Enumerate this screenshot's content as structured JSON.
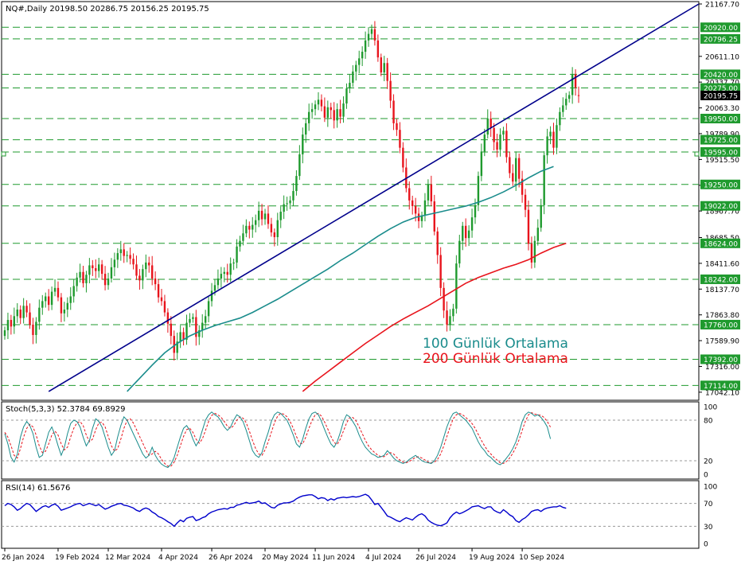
{
  "header": {
    "symbol_line": "NQ#,Daily  20198.50 20286.75 20156.25 20195.75"
  },
  "colors": {
    "background": "#ffffff",
    "bull_candle": "#1f9a2e",
    "bear_candle": "#e8141c",
    "ma100": "#1a8c8c",
    "ma200": "#e8141c",
    "trendline": "#00008b",
    "hline": "#1f9a2e",
    "axis_text": "#000000",
    "stoch_main": "#1a8c8c",
    "stoch_signal": "#e8141c",
    "rsi_line": "#0000cc",
    "current_price_bg": "#000000"
  },
  "chart_data": [
    {
      "type": "candlestick",
      "panel": "main",
      "title": "NQ#,Daily",
      "ohlc_last": {
        "open": 20198.5,
        "high": 20286.75,
        "low": 20156.25,
        "close": 20195.75
      },
      "ylim": [
        16990,
        21167.7
      ],
      "y_ticks": [
        "21167.70",
        "20611.10",
        "20337.70",
        "20063.30",
        "19789.90",
        "19515.50",
        "19241.10",
        "18967.70",
        "18685.50",
        "18411.60",
        "18137.70",
        "17863.80",
        "17589.90",
        "17316.00",
        "17042.10"
      ],
      "x_ticks": [
        "26 Jan 2024",
        "19 Feb 2024",
        "12 Mar 2024",
        "4 Apr 2024",
        "26 Apr 2024",
        "20 May 2024",
        "11 Jun 2024",
        "4 Jul 2024",
        "26 Jul 2024",
        "19 Aug 2024",
        "10 Sep 2024"
      ],
      "x_tick_index": [
        0,
        17,
        33,
        50,
        66,
        83,
        99,
        116,
        132,
        149,
        165
      ],
      "levels": [
        "20920.00",
        "20796.25",
        "20420.00",
        "20275.00",
        "19950.00",
        "19725.00",
        "19595.00",
        "19250.00",
        "19022.00",
        "18624.00",
        "18242.00",
        "17760.00",
        "17392.00",
        "17114.00"
      ],
      "current_price": "20195.75",
      "annotations": [
        "100 Günlük Ortalama",
        "200 Günlük Ortalama"
      ],
      "trendline": {
        "from": {
          "index": 14,
          "value": 17050
        },
        "to": {
          "index": 226,
          "value": 21167.7
        }
      },
      "close": [
        17700,
        17810,
        17740,
        17850,
        17920,
        17830,
        17960,
        17890,
        17760,
        17650,
        17790,
        17940,
        18010,
        18060,
        17970,
        18110,
        18150,
        18050,
        17880,
        17920,
        17990,
        18060,
        18170,
        18260,
        18320,
        18200,
        18290,
        18390,
        18360,
        18330,
        18400,
        18300,
        18180,
        18250,
        18370,
        18450,
        18520,
        18560,
        18490,
        18500,
        18460,
        18400,
        18280,
        18230,
        18350,
        18420,
        18390,
        18250,
        18190,
        18050,
        18010,
        17890,
        17770,
        17640,
        17460,
        17580,
        17680,
        17600,
        17780,
        17820,
        17840,
        17630,
        17700,
        17780,
        17850,
        18010,
        18120,
        18180,
        18250,
        18300,
        18320,
        18290,
        18410,
        18420,
        18590,
        18650,
        18730,
        18810,
        18770,
        18820,
        18870,
        18970,
        18880,
        18940,
        18830,
        18740,
        18690,
        18870,
        18960,
        19040,
        19050,
        19080,
        19180,
        19340,
        19570,
        19780,
        19900,
        20020,
        20050,
        20100,
        20150,
        20080,
        19960,
        20070,
        20040,
        19930,
        20050,
        19970,
        20110,
        20270,
        20330,
        20450,
        20520,
        20590,
        20660,
        20780,
        20850,
        20900,
        20780,
        20600,
        20440,
        20540,
        20350,
        20140,
        19900,
        19830,
        19640,
        19430,
        19210,
        19080,
        19020,
        18940,
        18860,
        18920,
        19080,
        19250,
        19070,
        18750,
        18500,
        18150,
        17910,
        17760,
        17850,
        17930,
        18410,
        18650,
        18810,
        18680,
        18760,
        18900,
        19030,
        19340,
        19600,
        19780,
        19950,
        19850,
        19700,
        19620,
        19780,
        19820,
        19540,
        19370,
        19280,
        19530,
        19310,
        19140,
        18980,
        18620,
        18420,
        18650,
        18790,
        19030,
        19560,
        19760,
        19810,
        19640,
        19880,
        20020,
        20090,
        20160,
        20200,
        20420,
        20280,
        20195.75
      ],
      "open": [
        17640,
        17700,
        17810,
        17740,
        17850,
        17920,
        17830,
        17960,
        17890,
        17760,
        17650,
        17790,
        17940,
        18010,
        18060,
        17970,
        18110,
        18150,
        18050,
        17880,
        17920,
        17990,
        18060,
        18170,
        18260,
        18320,
        18200,
        18290,
        18390,
        18360,
        18330,
        18400,
        18300,
        18180,
        18250,
        18370,
        18450,
        18520,
        18560,
        18490,
        18500,
        18460,
        18400,
        18280,
        18230,
        18350,
        18420,
        18390,
        18250,
        18190,
        18050,
        18010,
        17890,
        17770,
        17640,
        17460,
        17580,
        17680,
        17600,
        17780,
        17820,
        17840,
        17630,
        17700,
        17780,
        17850,
        18010,
        18120,
        18180,
        18250,
        18300,
        18320,
        18290,
        18410,
        18420,
        18590,
        18650,
        18730,
        18810,
        18770,
        18820,
        18870,
        18970,
        18880,
        18940,
        18830,
        18740,
        18690,
        18870,
        18960,
        19040,
        19050,
        19080,
        19180,
        19340,
        19570,
        19780,
        19900,
        20020,
        20050,
        20100,
        20150,
        20080,
        19960,
        20070,
        20040,
        19930,
        20050,
        19970,
        20110,
        20270,
        20330,
        20450,
        20520,
        20590,
        20660,
        20780,
        20850,
        20900,
        20780,
        20600,
        20440,
        20540,
        20350,
        20140,
        19900,
        19830,
        19640,
        19430,
        19210,
        19080,
        19020,
        18940,
        18860,
        18920,
        19080,
        19250,
        19070,
        18750,
        18500,
        18150,
        17910,
        17760,
        17850,
        17930,
        18410,
        18650,
        18810,
        18680,
        18760,
        18900,
        19030,
        19340,
        19600,
        19780,
        19950,
        19850,
        19700,
        19620,
        19780,
        19820,
        19540,
        19370,
        19280,
        19530,
        19310,
        19140,
        18980,
        18620,
        18420,
        18650,
        18790,
        19030,
        19560,
        19760,
        19810,
        19640,
        19880,
        20020,
        20090,
        20160,
        20200,
        20420,
        20198.5
      ],
      "ma100": {
        "name": "100 Günlük Ortalama",
        "from_index": 39,
        "values": [
          17050,
          17190,
          17330,
          17460,
          17560,
          17640,
          17700,
          17750,
          17790,
          17830,
          17890,
          17960,
          18030,
          18110,
          18190,
          18270,
          18350,
          18440,
          18520,
          18610,
          18700,
          18780,
          18850,
          18900,
          18930,
          18960,
          18990,
          19020,
          19060,
          19110,
          19170,
          19240,
          19320,
          19390,
          19440
        ]
      },
      "ma200": {
        "name": "200 Günlük Ortalama",
        "from_index": 95,
        "values": [
          17050,
          17160,
          17260,
          17360,
          17460,
          17560,
          17650,
          17740,
          17820,
          17890,
          17960,
          18040,
          18120,
          18200,
          18260,
          18310,
          18360,
          18400,
          18450,
          18520,
          18580,
          18624
        ]
      }
    },
    {
      "type": "line",
      "panel": "stochastic",
      "title": "Stoch(5,3,3) 52.3784 69.8929",
      "ylim": [
        0,
        100
      ],
      "y_ticks": [
        "100",
        "80",
        "20",
        "0"
      ],
      "levels": [
        80,
        20
      ],
      "series": [
        {
          "name": "main",
          "values": [
            60,
            45,
            25,
            18,
            30,
            55,
            70,
            78,
            72,
            60,
            40,
            25,
            28,
            45,
            62,
            70,
            58,
            42,
            28,
            40,
            60,
            75,
            80,
            78,
            70,
            55,
            42,
            50,
            68,
            82,
            78,
            70,
            55,
            40,
            28,
            35,
            55,
            72,
            85,
            80,
            70,
            60,
            50,
            40,
            30,
            24,
            28,
            40,
            28,
            20,
            15,
            12,
            10,
            15,
            25,
            40,
            55,
            68,
            72,
            65,
            52,
            42,
            50,
            65,
            80,
            88,
            92,
            88,
            85,
            78,
            70,
            65,
            70,
            80,
            88,
            85,
            78,
            65,
            50,
            35,
            28,
            25,
            32,
            48,
            62,
            78,
            88,
            92,
            90,
            85,
            80,
            70,
            58,
            45,
            40,
            52,
            68,
            82,
            90,
            92,
            88,
            78,
            66,
            55,
            45,
            40,
            48,
            62,
            78,
            88,
            85,
            78,
            70,
            58,
            48,
            40,
            35,
            30,
            28,
            25,
            26,
            28,
            35,
            30,
            24,
            20,
            18,
            16,
            18,
            22,
            25,
            28,
            24,
            20,
            18,
            17,
            16,
            20,
            28,
            40,
            55,
            70,
            82,
            90,
            92,
            88,
            84,
            80,
            74,
            68,
            58,
            48,
            40,
            35,
            28,
            25,
            20,
            16,
            14,
            18,
            24,
            30,
            38,
            48,
            62,
            78,
            88,
            92,
            90,
            86,
            88,
            84,
            78,
            70,
            52.38
          ]
        },
        {
          "name": "signal",
          "values": [
            62,
            55,
            42,
            28,
            24,
            38,
            55,
            68,
            74,
            70,
            58,
            42,
            32,
            34,
            45,
            58,
            64,
            58,
            45,
            36,
            40,
            55,
            68,
            76,
            78,
            72,
            58,
            48,
            52,
            66,
            76,
            77,
            70,
            56,
            42,
            34,
            38,
            52,
            68,
            80,
            82,
            76,
            66,
            56,
            46,
            36,
            28,
            30,
            34,
            30,
            22,
            16,
            12,
            12,
            18,
            28,
            42,
            56,
            66,
            68,
            62,
            52,
            46,
            52,
            65,
            78,
            87,
            90,
            88,
            84,
            78,
            71,
            68,
            72,
            80,
            85,
            83,
            76,
            64,
            50,
            38,
            30,
            28,
            36,
            48,
            62,
            76,
            86,
            90,
            89,
            85,
            78,
            68,
            56,
            46,
            45,
            55,
            68,
            80,
            88,
            90,
            86,
            77,
            67,
            56,
            47,
            44,
            52,
            64,
            76,
            84,
            84,
            79,
            70,
            60,
            50,
            42,
            36,
            32,
            28,
            26,
            26,
            30,
            32,
            30,
            25,
            21,
            18,
            17,
            19,
            22,
            25,
            26,
            24,
            21,
            18,
            17,
            18,
            22,
            30,
            42,
            56,
            70,
            82,
            88,
            90,
            88,
            84,
            80,
            75,
            68,
            59,
            50,
            42,
            35,
            30,
            25,
            21,
            17,
            16,
            19,
            24,
            31,
            40,
            51,
            65,
            78,
            88,
            91,
            89,
            88,
            87,
            84,
            78,
            69.89
          ]
        }
      ]
    },
    {
      "type": "line",
      "panel": "rsi",
      "title": "RSI(14) 61.5676",
      "ylim": [
        0,
        100
      ],
      "y_ticks": [
        "100",
        "70",
        "30",
        "0"
      ],
      "levels": [
        70,
        30
      ],
      "series": [
        {
          "name": "RSI(14)",
          "values": [
            66,
            70,
            68,
            64,
            58,
            61,
            66,
            70,
            68,
            62,
            56,
            60,
            64,
            66,
            63,
            67,
            69,
            65,
            58,
            60,
            62,
            64,
            67,
            69,
            70,
            66,
            68,
            70,
            68,
            66,
            68,
            64,
            60,
            62,
            65,
            67,
            69,
            70,
            67,
            66,
            64,
            62,
            58,
            56,
            60,
            62,
            60,
            55,
            52,
            47,
            45,
            42,
            38,
            35,
            30,
            36,
            41,
            38,
            44,
            46,
            47,
            40,
            42,
            45,
            47,
            52,
            55,
            57,
            59,
            60,
            61,
            60,
            63,
            63,
            67,
            68,
            70,
            72,
            70,
            71,
            72,
            74,
            70,
            71,
            67,
            63,
            62,
            67,
            69,
            71,
            71,
            72,
            74,
            78,
            81,
            83,
            84,
            85,
            85,
            82,
            78,
            80,
            79,
            75,
            78,
            76,
            79,
            80,
            81,
            80,
            81,
            82,
            81,
            82,
            84,
            86,
            83,
            76,
            68,
            70,
            63,
            56,
            48,
            46,
            43,
            40,
            38,
            42,
            45,
            43,
            41,
            46,
            50,
            52,
            48,
            41,
            37,
            34,
            32,
            31,
            33,
            36,
            45,
            51,
            55,
            52,
            54,
            57,
            60,
            64,
            65,
            66,
            63,
            61,
            64,
            64,
            58,
            55,
            53,
            59,
            55,
            50,
            47,
            40,
            37,
            42,
            45,
            50,
            56,
            58,
            59,
            56,
            60,
            62,
            63,
            64,
            64,
            66,
            63,
            61.57
          ]
        }
      ]
    }
  ]
}
